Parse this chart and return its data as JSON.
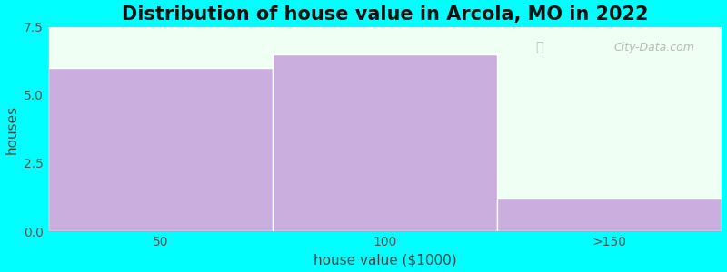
{
  "title": "Distribution of house value in Arcola, MO in 2022",
  "xlabel": "house value ($1000)",
  "ylabel": "houses",
  "categories": [
    "50",
    "100",
    ">150"
  ],
  "values": [
    6,
    6.5,
    1.2
  ],
  "bar_color": "#c9aede",
  "bar_edge_color": "#c9aede",
  "background_color": "#00ffff",
  "plot_bg_color": "#f0fff4",
  "ylim": [
    0,
    7.5
  ],
  "yticks": [
    0,
    2.5,
    5,
    7.5
  ],
  "title_fontsize": 15,
  "axis_label_fontsize": 11,
  "tick_fontsize": 10,
  "watermark_text": "City-Data.com",
  "bin_edges": [
    0,
    1,
    2,
    3
  ],
  "bar_width": 1.0,
  "xlim": [
    -0.5,
    2.5
  ]
}
